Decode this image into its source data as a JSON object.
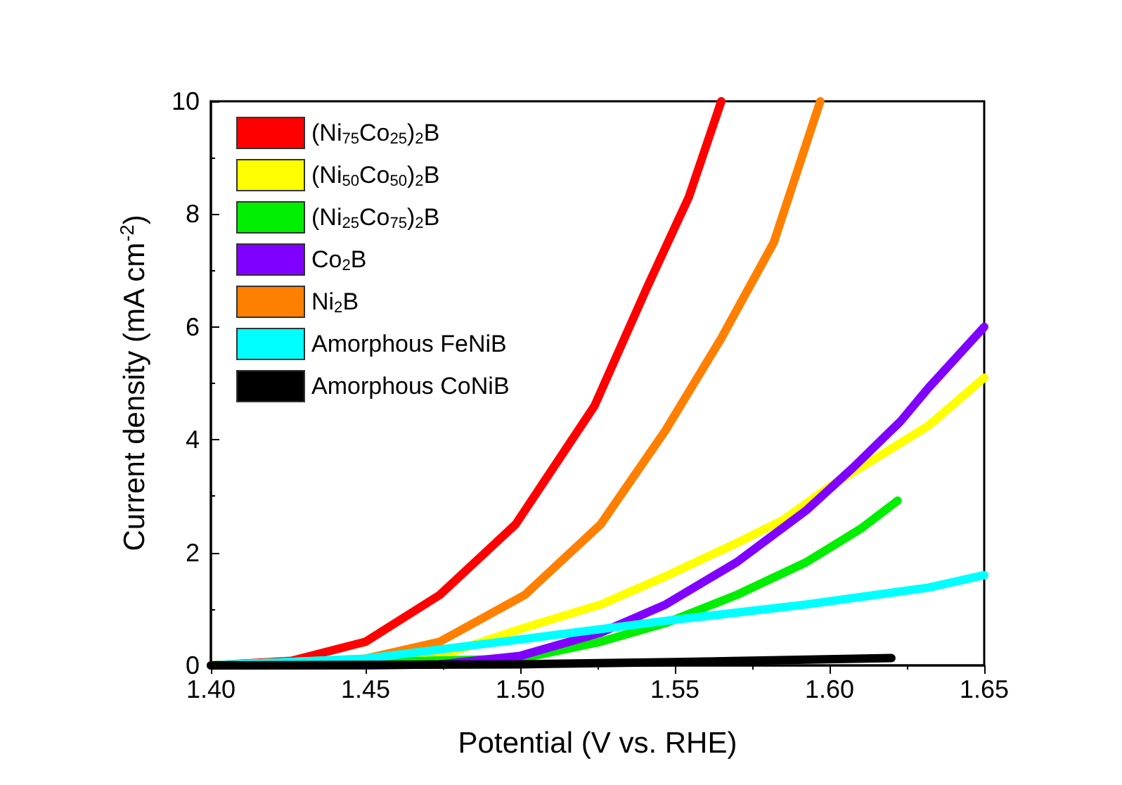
{
  "chart_data": {
    "type": "line",
    "xlabel": "Potential (V vs. RHE)",
    "ylabel": "Current density (mA cm$^{-2}$)",
    "xlim": [
      1.4,
      1.65
    ],
    "ylim": [
      0,
      10
    ],
    "xticks": [
      {
        "value": 1.4,
        "label": "1.40"
      },
      {
        "value": 1.45,
        "label": "1.45"
      },
      {
        "value": 1.5,
        "label": "1.50"
      },
      {
        "value": 1.55,
        "label": "1.55"
      },
      {
        "value": 1.6,
        "label": "1.60"
      },
      {
        "value": 1.65,
        "label": "1.65"
      }
    ],
    "yticks": [
      0,
      2,
      4,
      6,
      8,
      10
    ],
    "grid": false,
    "legend": "top left",
    "marker": "none",
    "line_style": "solid",
    "series": [
      {
        "name": "(Ni$_{75}$Co$_{25}$)$_{2}$B",
        "color": "#ff0000",
        "x": [
          1.4,
          1.426,
          1.45,
          1.474,
          1.4985,
          1.524,
          1.541,
          1.5545,
          1.565
        ],
        "values": [
          0,
          0.08,
          0.42,
          1.25,
          2.5,
          4.6,
          6.7,
          8.3,
          10
        ]
      },
      {
        "name": "(Ni$_{50}$Co$_{50}$)$_{2}$B",
        "color": "#ffff00",
        "x": [
          1.4,
          1.474,
          1.5015,
          1.526,
          1.547,
          1.57,
          1.585,
          1.6,
          1.632,
          1.65
        ],
        "values": [
          0,
          0.17,
          0.67,
          1.08,
          1.58,
          2.17,
          2.58,
          3.17,
          4.25,
          5.1
        ]
      },
      {
        "name": "(Ni$_{25}$Co$_{75}$)$_{2}$B",
        "color": "#00ee00",
        "x": [
          1.4,
          1.5,
          1.526,
          1.547,
          1.57,
          1.5925,
          1.61,
          1.622
        ],
        "values": [
          0,
          0.12,
          0.42,
          0.75,
          1.25,
          1.83,
          2.42,
          2.92
        ]
      },
      {
        "name": "Co$_{2}$B",
        "color": "#8000ff",
        "x": [
          1.4,
          1.45,
          1.474,
          1.5,
          1.526,
          1.547,
          1.57,
          1.5925,
          1.6075,
          1.623,
          1.632,
          1.65
        ],
        "values": [
          0,
          0,
          0.02,
          0.17,
          0.58,
          1.08,
          1.83,
          2.75,
          3.5,
          4.33,
          4.92,
          6
        ]
      },
      {
        "name": "Ni$_{2}$B",
        "color": "#ff8000",
        "x": [
          1.4,
          1.43,
          1.45,
          1.474,
          1.5015,
          1.526,
          1.547,
          1.565,
          1.582,
          1.597
        ],
        "values": [
          0,
          0.03,
          0.12,
          0.42,
          1.25,
          2.5,
          4.17,
          5.8,
          7.5,
          10
        ]
      },
      {
        "name": "Amorphous FeNiB",
        "color": "#00ffff",
        "x": [
          1.4,
          1.45,
          1.5,
          1.547,
          1.5925,
          1.632,
          1.65
        ],
        "values": [
          0,
          0.12,
          0.46,
          0.79,
          1.08,
          1.38,
          1.6
        ]
      },
      {
        "name": "Amorphous CoNiB",
        "color": "#000000",
        "x": [
          1.4,
          1.5,
          1.55,
          1.62
        ],
        "values": [
          0,
          0.02,
          0.06,
          0.13
        ]
      }
    ]
  }
}
